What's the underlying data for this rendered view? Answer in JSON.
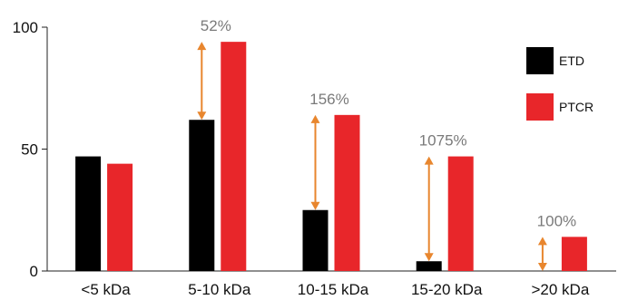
{
  "chart_data": {
    "type": "bar",
    "categories": [
      "<5 kDa",
      "5-10 kDa",
      "10-15 kDa",
      "15-20 kDa",
      ">20 kDa"
    ],
    "series": [
      {
        "name": "ETD",
        "values": [
          47,
          62,
          25,
          4,
          0
        ],
        "color": "#000000"
      },
      {
        "name": "PTCR",
        "values": [
          44,
          94,
          64,
          47,
          14
        ],
        "color": "#e8262a"
      }
    ],
    "annotations": [
      {
        "category": "5-10 kDa",
        "label": "52%",
        "from": 62,
        "to": 94
      },
      {
        "category": "10-15 kDa",
        "label": "156%",
        "from": 25,
        "to": 64
      },
      {
        "category": "15-20 kDa",
        "label": "1075%",
        "from": 4,
        "to": 47
      },
      {
        "category": ">20 kDa",
        "label": "100%",
        "from": 0,
        "to": 14
      }
    ],
    "arrow_color": "#e8862e",
    "ylim": [
      0,
      100
    ],
    "yticks": [
      "0",
      "50",
      "100"
    ],
    "xlabel": "",
    "ylabel": "",
    "title": "",
    "legend": {
      "placement": "top-right",
      "entries": [
        "ETD",
        "PTCR"
      ]
    },
    "grid": false
  }
}
